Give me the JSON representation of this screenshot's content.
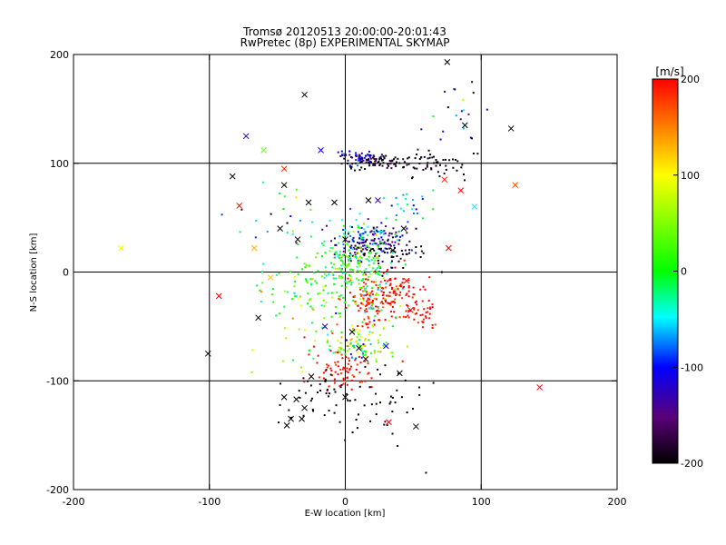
{
  "chart_data": {
    "type": "scatter",
    "title": "Tromsø 20120513 20:00:00-20:01:43",
    "subtitle": "RwPretec (8p) EXPERIMENTAL SKYMAP",
    "xlabel": "E-W location [km]",
    "ylabel": "N-S location [km]",
    "xlim": [
      -200,
      200
    ],
    "ylim": [
      -200,
      200
    ],
    "x_ticks": [
      "-200",
      "-100",
      "0",
      "100",
      "200"
    ],
    "y_ticks": [
      "-200",
      "-100",
      "0",
      "100",
      "200"
    ],
    "grid": true,
    "colorbar": {
      "label": "[m/s]",
      "range": [
        -200,
        200
      ],
      "ticks": [
        "200",
        "100",
        "0",
        "-100",
        "-200"
      ],
      "colors": [
        "#ff0000",
        "#ffff00",
        "#00ff00",
        "#00ffff",
        "#0000ff",
        "#5a0078",
        "#000000"
      ]
    },
    "series": [
      {
        "marker": "cross",
        "points": [
          [
            75,
            193,
            -200
          ],
          [
            -30,
            163,
            -200
          ],
          [
            -73,
            125,
            -130
          ],
          [
            -18,
            112,
            -110
          ],
          [
            -60,
            112,
            40
          ],
          [
            122,
            132,
            -200
          ],
          [
            88,
            135,
            -200
          ],
          [
            -83,
            88,
            -200
          ],
          [
            -45,
            95,
            180
          ],
          [
            -45,
            80,
            -200
          ],
          [
            -78,
            61,
            200
          ],
          [
            -27,
            64,
            -200
          ],
          [
            -8,
            64,
            -200
          ],
          [
            17,
            66,
            -200
          ],
          [
            24,
            66,
            -130
          ],
          [
            73,
            85,
            180
          ],
          [
            85,
            75,
            200
          ],
          [
            125,
            80,
            170
          ],
          [
            -165,
            22,
            90
          ],
          [
            -67,
            22,
            130
          ],
          [
            76,
            22,
            200
          ],
          [
            -93,
            -22,
            200
          ],
          [
            -64,
            -42,
            -200
          ],
          [
            -15,
            -50,
            -130
          ],
          [
            -101,
            -75,
            -200
          ],
          [
            143,
            -106,
            200
          ],
          [
            40,
            -93,
            -200
          ],
          [
            -45,
            -115,
            -200
          ],
          [
            -36,
            -117,
            -200
          ],
          [
            -30,
            -125,
            -200
          ],
          [
            -32,
            -135,
            -200
          ],
          [
            -40,
            -135,
            -200
          ],
          [
            -43,
            -141,
            -200
          ],
          [
            0,
            -115,
            -200
          ],
          [
            52,
            -142,
            -200
          ],
          [
            32,
            -138,
            200
          ],
          [
            -25,
            -96,
            -200
          ],
          [
            43,
            40,
            -200
          ],
          [
            35,
            20,
            -200
          ],
          [
            0,
            30,
            -200
          ],
          [
            -48,
            40,
            -200
          ],
          [
            -35,
            30,
            -200
          ],
          [
            10,
            -70,
            -200
          ],
          [
            30,
            -68,
            -100
          ],
          [
            15,
            -80,
            -200
          ],
          [
            -55,
            -5,
            120
          ],
          [
            45,
            -8,
            200
          ],
          [
            48,
            -35,
            200
          ],
          [
            5,
            -55,
            -200
          ],
          [
            95,
            60,
            -50
          ]
        ]
      },
      {
        "marker": "dot",
        "clusters": [
          {
            "cx": 22,
            "cy": 102,
            "sx": 14,
            "sy": 4,
            "n": 90,
            "v": -200,
            "vsd": 20
          },
          {
            "cx": 10,
            "cy": 106,
            "sx": 8,
            "sy": 3,
            "n": 40,
            "v": -120,
            "vsd": 25
          },
          {
            "cx": 65,
            "cy": 100,
            "sx": 14,
            "sy": 8,
            "n": 50,
            "v": -200,
            "vsd": 15
          },
          {
            "cx": 20,
            "cy": 28,
            "sx": 14,
            "sy": 7,
            "n": 120,
            "v": -140,
            "vsd": 40
          },
          {
            "cx": 30,
            "cy": 18,
            "sx": 18,
            "sy": 8,
            "n": 60,
            "v": -200,
            "vsd": 25
          },
          {
            "cx": 10,
            "cy": 40,
            "sx": 12,
            "sy": 8,
            "n": 40,
            "v": -40,
            "vsd": 40
          },
          {
            "cx": 5,
            "cy": 10,
            "sx": 12,
            "sy": 10,
            "n": 110,
            "v": 10,
            "vsd": 45
          },
          {
            "cx": -20,
            "cy": -15,
            "sx": 20,
            "sy": 15,
            "n": 110,
            "v": 20,
            "vsd": 35
          },
          {
            "cx": 32,
            "cy": -20,
            "sx": 10,
            "sy": 10,
            "n": 110,
            "v": 200,
            "vsd": 15
          },
          {
            "cx": 55,
            "cy": -38,
            "sx": 7,
            "sy": 7,
            "n": 40,
            "v": 200,
            "vsd": 15
          },
          {
            "cx": 15,
            "cy": -30,
            "sx": 10,
            "sy": 10,
            "n": 70,
            "v": 180,
            "vsd": 30
          },
          {
            "cx": 20,
            "cy": -10,
            "sx": 8,
            "sy": 20,
            "n": 80,
            "v": 0,
            "vsd": 50
          },
          {
            "cx": 5,
            "cy": -60,
            "sx": 10,
            "sy": 8,
            "n": 40,
            "v": 60,
            "vsd": 60
          },
          {
            "cx": 10,
            "cy": -72,
            "sx": 15,
            "sy": 5,
            "n": 60,
            "v": 40,
            "vsd": 80
          },
          {
            "cx": 0,
            "cy": -92,
            "sx": 12,
            "sy": 8,
            "n": 70,
            "v": 200,
            "vsd": 20
          },
          {
            "cx": -15,
            "cy": -120,
            "sx": 20,
            "sy": 15,
            "n": 40,
            "v": -200,
            "vsd": 10
          },
          {
            "cx": 25,
            "cy": -118,
            "sx": 20,
            "sy": 20,
            "n": 40,
            "v": -200,
            "vsd": 10
          },
          {
            "cx": 50,
            "cy": 60,
            "sx": 10,
            "sy": 10,
            "n": 25,
            "v": -60,
            "vsd": 40
          },
          {
            "cx": 80,
            "cy": 140,
            "sx": 15,
            "sy": 15,
            "n": 20,
            "v": -120,
            "vsd": 60
          },
          {
            "cx": -50,
            "cy": 50,
            "sx": 20,
            "sy": 20,
            "n": 25,
            "v": -20,
            "vsd": 100
          },
          {
            "cx": -30,
            "cy": -45,
            "sx": 20,
            "sy": 20,
            "n": 25,
            "v": 80,
            "vsd": 100
          }
        ]
      }
    ]
  }
}
